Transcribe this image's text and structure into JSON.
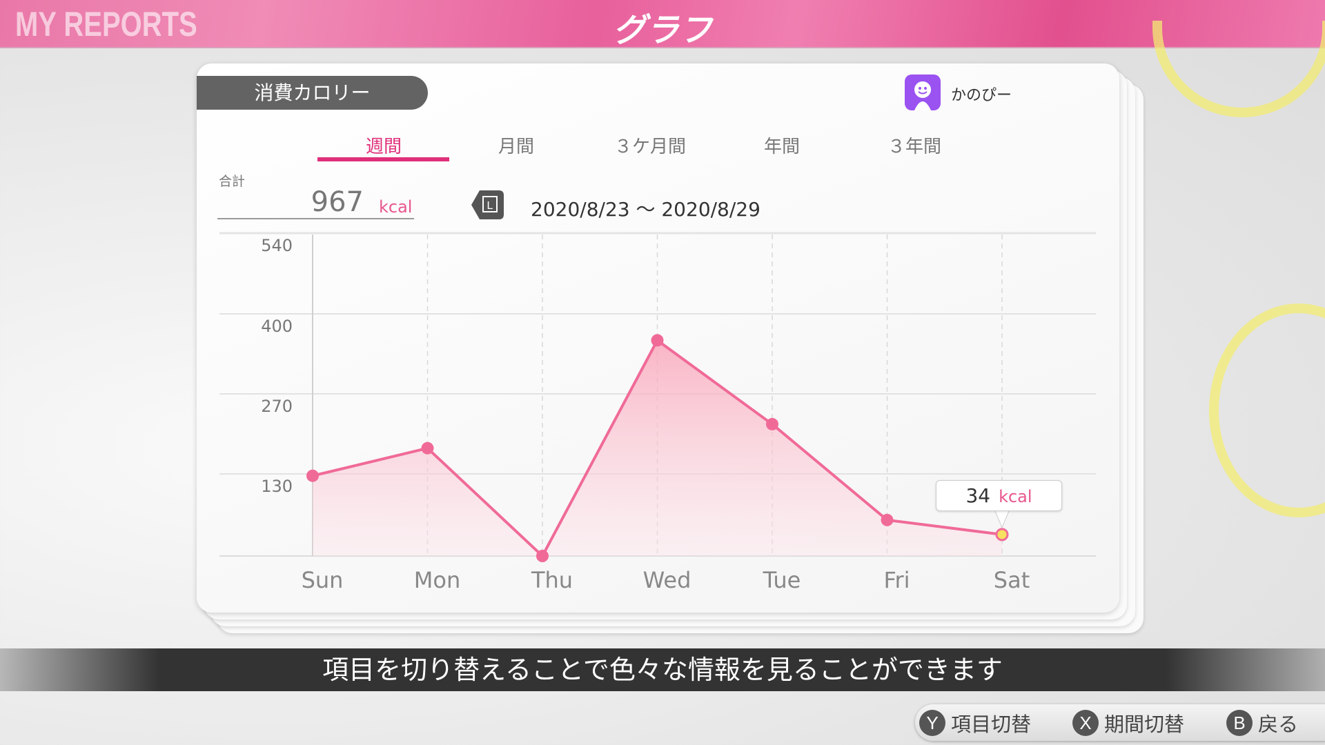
{
  "header": {
    "brand": "MY REPORTS",
    "title": "グラフ"
  },
  "category": "消費カロリー",
  "user": {
    "name": "かのぴー",
    "icon": "smiley-avatar-icon",
    "color": "#9a52f0"
  },
  "tabs": [
    {
      "label": "週間",
      "active": true
    },
    {
      "label": "月間"
    },
    {
      "label": "３ケ月間"
    },
    {
      "label": "年間"
    },
    {
      "label": "３年間"
    }
  ],
  "summary": {
    "label": "合計",
    "total": "967",
    "unit": "kcal"
  },
  "range": {
    "button": "L",
    "text": "2020/8/23 ～ 2020/8/29"
  },
  "colors": {
    "accent": "#e0307a",
    "line": "#f06a98",
    "highlight": "#f8e060"
  },
  "chart_data": {
    "type": "area",
    "categories": [
      "Sun",
      "Mon",
      "Thu",
      "Wed",
      "Tue",
      "Fri",
      "Sat"
    ],
    "values": [
      127,
      175,
      0,
      357,
      217,
      57,
      34
    ],
    "unit": "kcal",
    "yticks": [
      540,
      400,
      270,
      130
    ],
    "ylim": [
      0,
      540
    ],
    "grid": true,
    "selected": {
      "category": "Sat",
      "value": "34",
      "unit": "kcal"
    }
  },
  "hint": "項目を切り替えることで色々な情報を見ることができます",
  "buttons": [
    {
      "key": "Y",
      "label": "項目切替"
    },
    {
      "key": "X",
      "label": "期間切替"
    },
    {
      "key": "B",
      "label": "戻る"
    }
  ]
}
